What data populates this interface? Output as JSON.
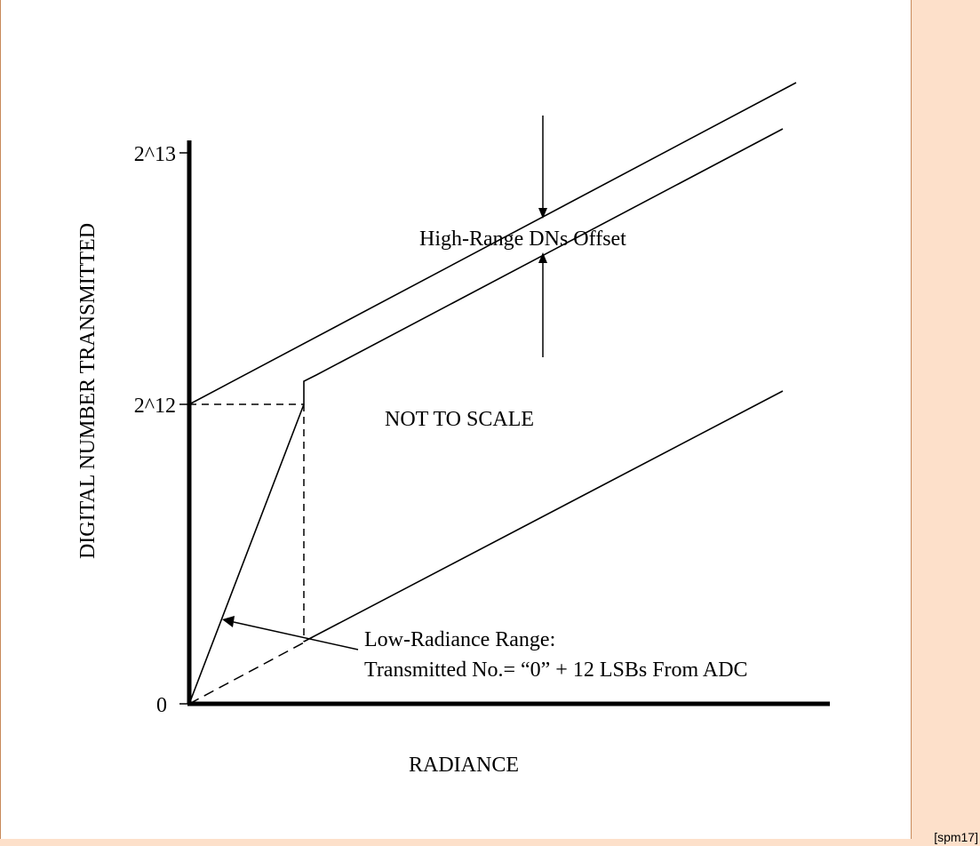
{
  "diagram": {
    "y_axis_label": "DIGITAL NUMBER TRANSMITTED",
    "x_axis_label": "RADIANCE",
    "y_ticks": [
      "2^13",
      "2^12",
      "0"
    ],
    "annotations": {
      "offset_label": "High-Range DNs Offset",
      "scale_note": "NOT TO SCALE",
      "low_range_title": "Low-Radiance Range:",
      "low_range_detail": "Transmitted No.= “0” + 12 LSBs From ADC"
    }
  },
  "page_tag": "[spm17]",
  "colors": {
    "panel": "#fde0ca",
    "border": "#c88a5a"
  }
}
